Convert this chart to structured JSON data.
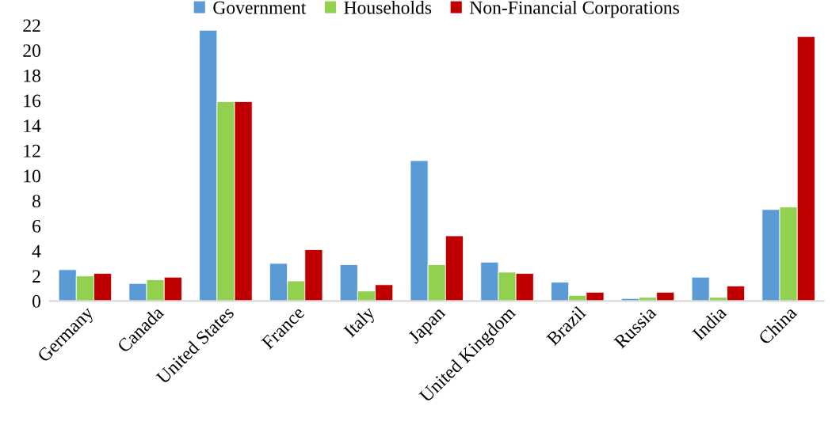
{
  "chart_data": {
    "type": "bar",
    "categories": [
      "Germany",
      "Canada",
      "United States",
      "France",
      "Italy",
      "Japan",
      "United Kingdom",
      "Brazil",
      "Russia",
      "India",
      "China"
    ],
    "series": [
      {
        "name": "Government",
        "color": "#5b9bd5",
        "values": [
          2.5,
          1.4,
          21.6,
          3.0,
          2.9,
          11.2,
          3.1,
          1.5,
          0.2,
          1.9,
          7.3
        ]
      },
      {
        "name": "Households",
        "color": "#92d050",
        "values": [
          2.0,
          1.7,
          15.9,
          1.6,
          0.8,
          2.9,
          2.3,
          0.45,
          0.3,
          0.3,
          7.5
        ]
      },
      {
        "name": "Non-Financial Corporations",
        "color": "#c00000",
        "values": [
          2.2,
          1.9,
          15.9,
          4.1,
          1.3,
          5.2,
          2.2,
          0.7,
          0.7,
          1.2,
          21.1
        ]
      }
    ],
    "ylim": [
      0,
      22
    ],
    "yticks": [
      0,
      2,
      4,
      6,
      8,
      10,
      12,
      14,
      16,
      18,
      20,
      22
    ],
    "grid": false,
    "legend": "top"
  }
}
